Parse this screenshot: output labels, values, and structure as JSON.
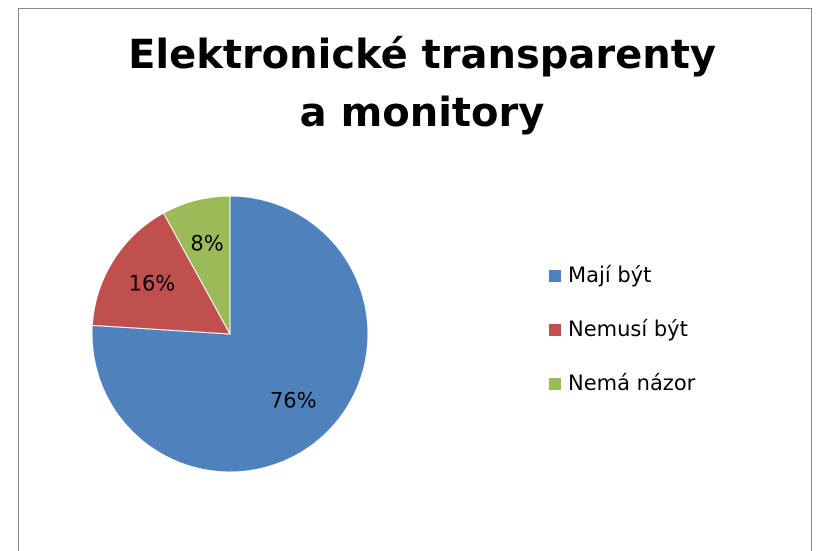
{
  "chart_data": {
    "type": "pie",
    "title": "Elektronické transparenty a monitory",
    "categories": [
      "Mají být",
      "Nemusí být",
      "Nemá názor"
    ],
    "values": [
      76,
      16,
      8
    ],
    "value_labels": [
      "76%",
      "16%",
      "8%"
    ],
    "colors": [
      "#4f81bd",
      "#c0504d",
      "#9bbb59"
    ],
    "legend": "right"
  }
}
